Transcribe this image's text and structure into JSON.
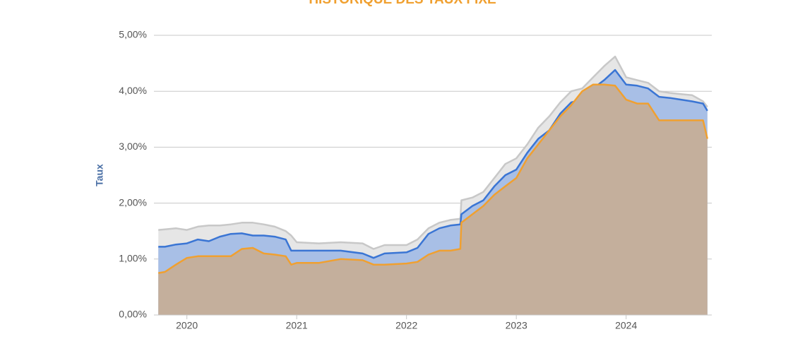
{
  "chart_data": {
    "type": "area",
    "title": "HISTORIQUE DES TAUX FIXE",
    "y_label": "Taux",
    "x": [
      2019.74,
      2019.8,
      2019.9,
      2020.0,
      2020.1,
      2020.2,
      2020.3,
      2020.4,
      2020.5,
      2020.6,
      2020.7,
      2020.8,
      2020.9,
      2020.95,
      2021.0,
      2021.2,
      2021.4,
      2021.6,
      2021.7,
      2021.8,
      2022.0,
      2022.1,
      2022.2,
      2022.3,
      2022.4,
      2022.49,
      2022.5,
      2022.6,
      2022.7,
      2022.8,
      2022.9,
      2023.0,
      2023.1,
      2023.2,
      2023.3,
      2023.4,
      2023.5,
      2023.6,
      2023.7,
      2023.8,
      2023.9,
      2024.0,
      2024.1,
      2024.2,
      2024.3,
      2024.4,
      2024.5,
      2024.6,
      2024.7,
      2024.74
    ],
    "series": [
      {
        "color": "#c8c8c8",
        "fill_color": "#e6e6e6",
        "values": [
          1.52,
          1.53,
          1.55,
          1.52,
          1.58,
          1.6,
          1.6,
          1.62,
          1.65,
          1.65,
          1.62,
          1.58,
          1.5,
          1.42,
          1.3,
          1.28,
          1.3,
          1.28,
          1.18,
          1.25,
          1.25,
          1.35,
          1.55,
          1.65,
          1.7,
          1.72,
          2.05,
          2.1,
          2.2,
          2.45,
          2.7,
          2.8,
          3.05,
          3.35,
          3.55,
          3.8,
          4.0,
          4.05,
          4.25,
          4.45,
          4.62,
          4.25,
          4.2,
          4.15,
          4.0,
          3.97,
          3.95,
          3.93,
          3.82,
          3.72
        ]
      },
      {
        "color": "#3a75d4",
        "fill_color": "#a8bfe6",
        "values": [
          1.22,
          1.22,
          1.26,
          1.28,
          1.35,
          1.32,
          1.4,
          1.45,
          1.46,
          1.42,
          1.42,
          1.4,
          1.35,
          1.15,
          1.15,
          1.15,
          1.15,
          1.1,
          1.02,
          1.1,
          1.12,
          1.2,
          1.45,
          1.55,
          1.6,
          1.62,
          1.8,
          1.95,
          2.05,
          2.3,
          2.5,
          2.6,
          2.9,
          3.15,
          3.3,
          3.6,
          3.8,
          3.85,
          4.05,
          4.2,
          4.38,
          4.12,
          4.1,
          4.05,
          3.9,
          3.88,
          3.85,
          3.82,
          3.78,
          3.65
        ]
      },
      {
        "color": "#f0a030",
        "fill_color": "#c4af9c",
        "values": [
          0.75,
          0.77,
          0.9,
          1.02,
          1.05,
          1.05,
          1.05,
          1.05,
          1.18,
          1.2,
          1.1,
          1.08,
          1.05,
          0.9,
          0.93,
          0.93,
          1.0,
          0.98,
          0.9,
          0.9,
          0.92,
          0.95,
          1.08,
          1.15,
          1.15,
          1.18,
          1.65,
          1.8,
          1.95,
          2.15,
          2.3,
          2.45,
          2.8,
          3.05,
          3.3,
          3.55,
          3.75,
          4.0,
          4.12,
          4.12,
          4.1,
          3.85,
          3.78,
          3.78,
          3.48,
          3.48,
          3.48,
          3.48,
          3.48,
          3.15
        ]
      }
    ],
    "xlim": [
      2019.7,
      2024.78
    ],
    "xticks": [
      2020,
      2021,
      2022,
      2023,
      2024
    ],
    "ylim": [
      0,
      5
    ],
    "yticks": [
      {
        "value": 0,
        "label": "0,00%"
      },
      {
        "value": 1,
        "label": "1,00%"
      },
      {
        "value": 2,
        "label": "2,00%"
      },
      {
        "value": 3,
        "label": "3,00%"
      },
      {
        "value": 4,
        "label": "4,00%"
      },
      {
        "value": 5,
        "label": "5,00%"
      }
    ],
    "grid": true
  }
}
